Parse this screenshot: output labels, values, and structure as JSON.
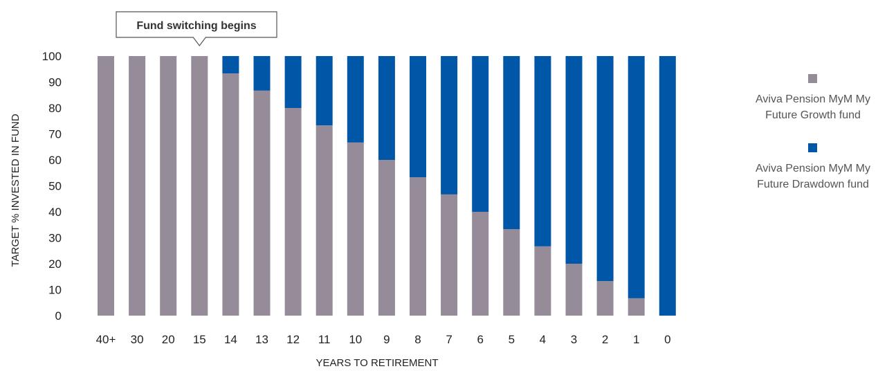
{
  "chart_data": {
    "type": "bar",
    "stacked": true,
    "xlabel": "YEARS TO RETIREMENT",
    "ylabel": "TARGET % INVESTED IN FUND",
    "ylim": [
      0,
      100
    ],
    "yticks": [
      0,
      10,
      20,
      30,
      40,
      50,
      60,
      70,
      80,
      90,
      100
    ],
    "categories": [
      "40+",
      "30",
      "20",
      "15",
      "14",
      "13",
      "12",
      "11",
      "10",
      "9",
      "8",
      "7",
      "6",
      "5",
      "4",
      "3",
      "2",
      "1",
      "0"
    ],
    "series": [
      {
        "name": "Aviva Pension MyM My Future Growth fund",
        "color": "#968c99",
        "values": [
          100,
          100,
          100,
          100,
          93.3,
          86.7,
          80,
          73.3,
          66.7,
          60,
          53.3,
          46.7,
          40,
          33.3,
          26.7,
          20,
          13.3,
          6.7,
          0
        ]
      },
      {
        "name": "Aviva Pension MyM My Future Drawdown fund",
        "color": "#0057a8",
        "values": [
          0,
          0,
          0,
          0,
          6.7,
          13.3,
          20,
          26.7,
          33.3,
          40,
          46.7,
          53.3,
          60,
          66.7,
          73.3,
          80,
          86.7,
          93.3,
          100
        ]
      }
    ],
    "annotation": {
      "text": "Fund switching begins",
      "at_category": "15"
    },
    "legend_position": "right",
    "grid": false
  }
}
